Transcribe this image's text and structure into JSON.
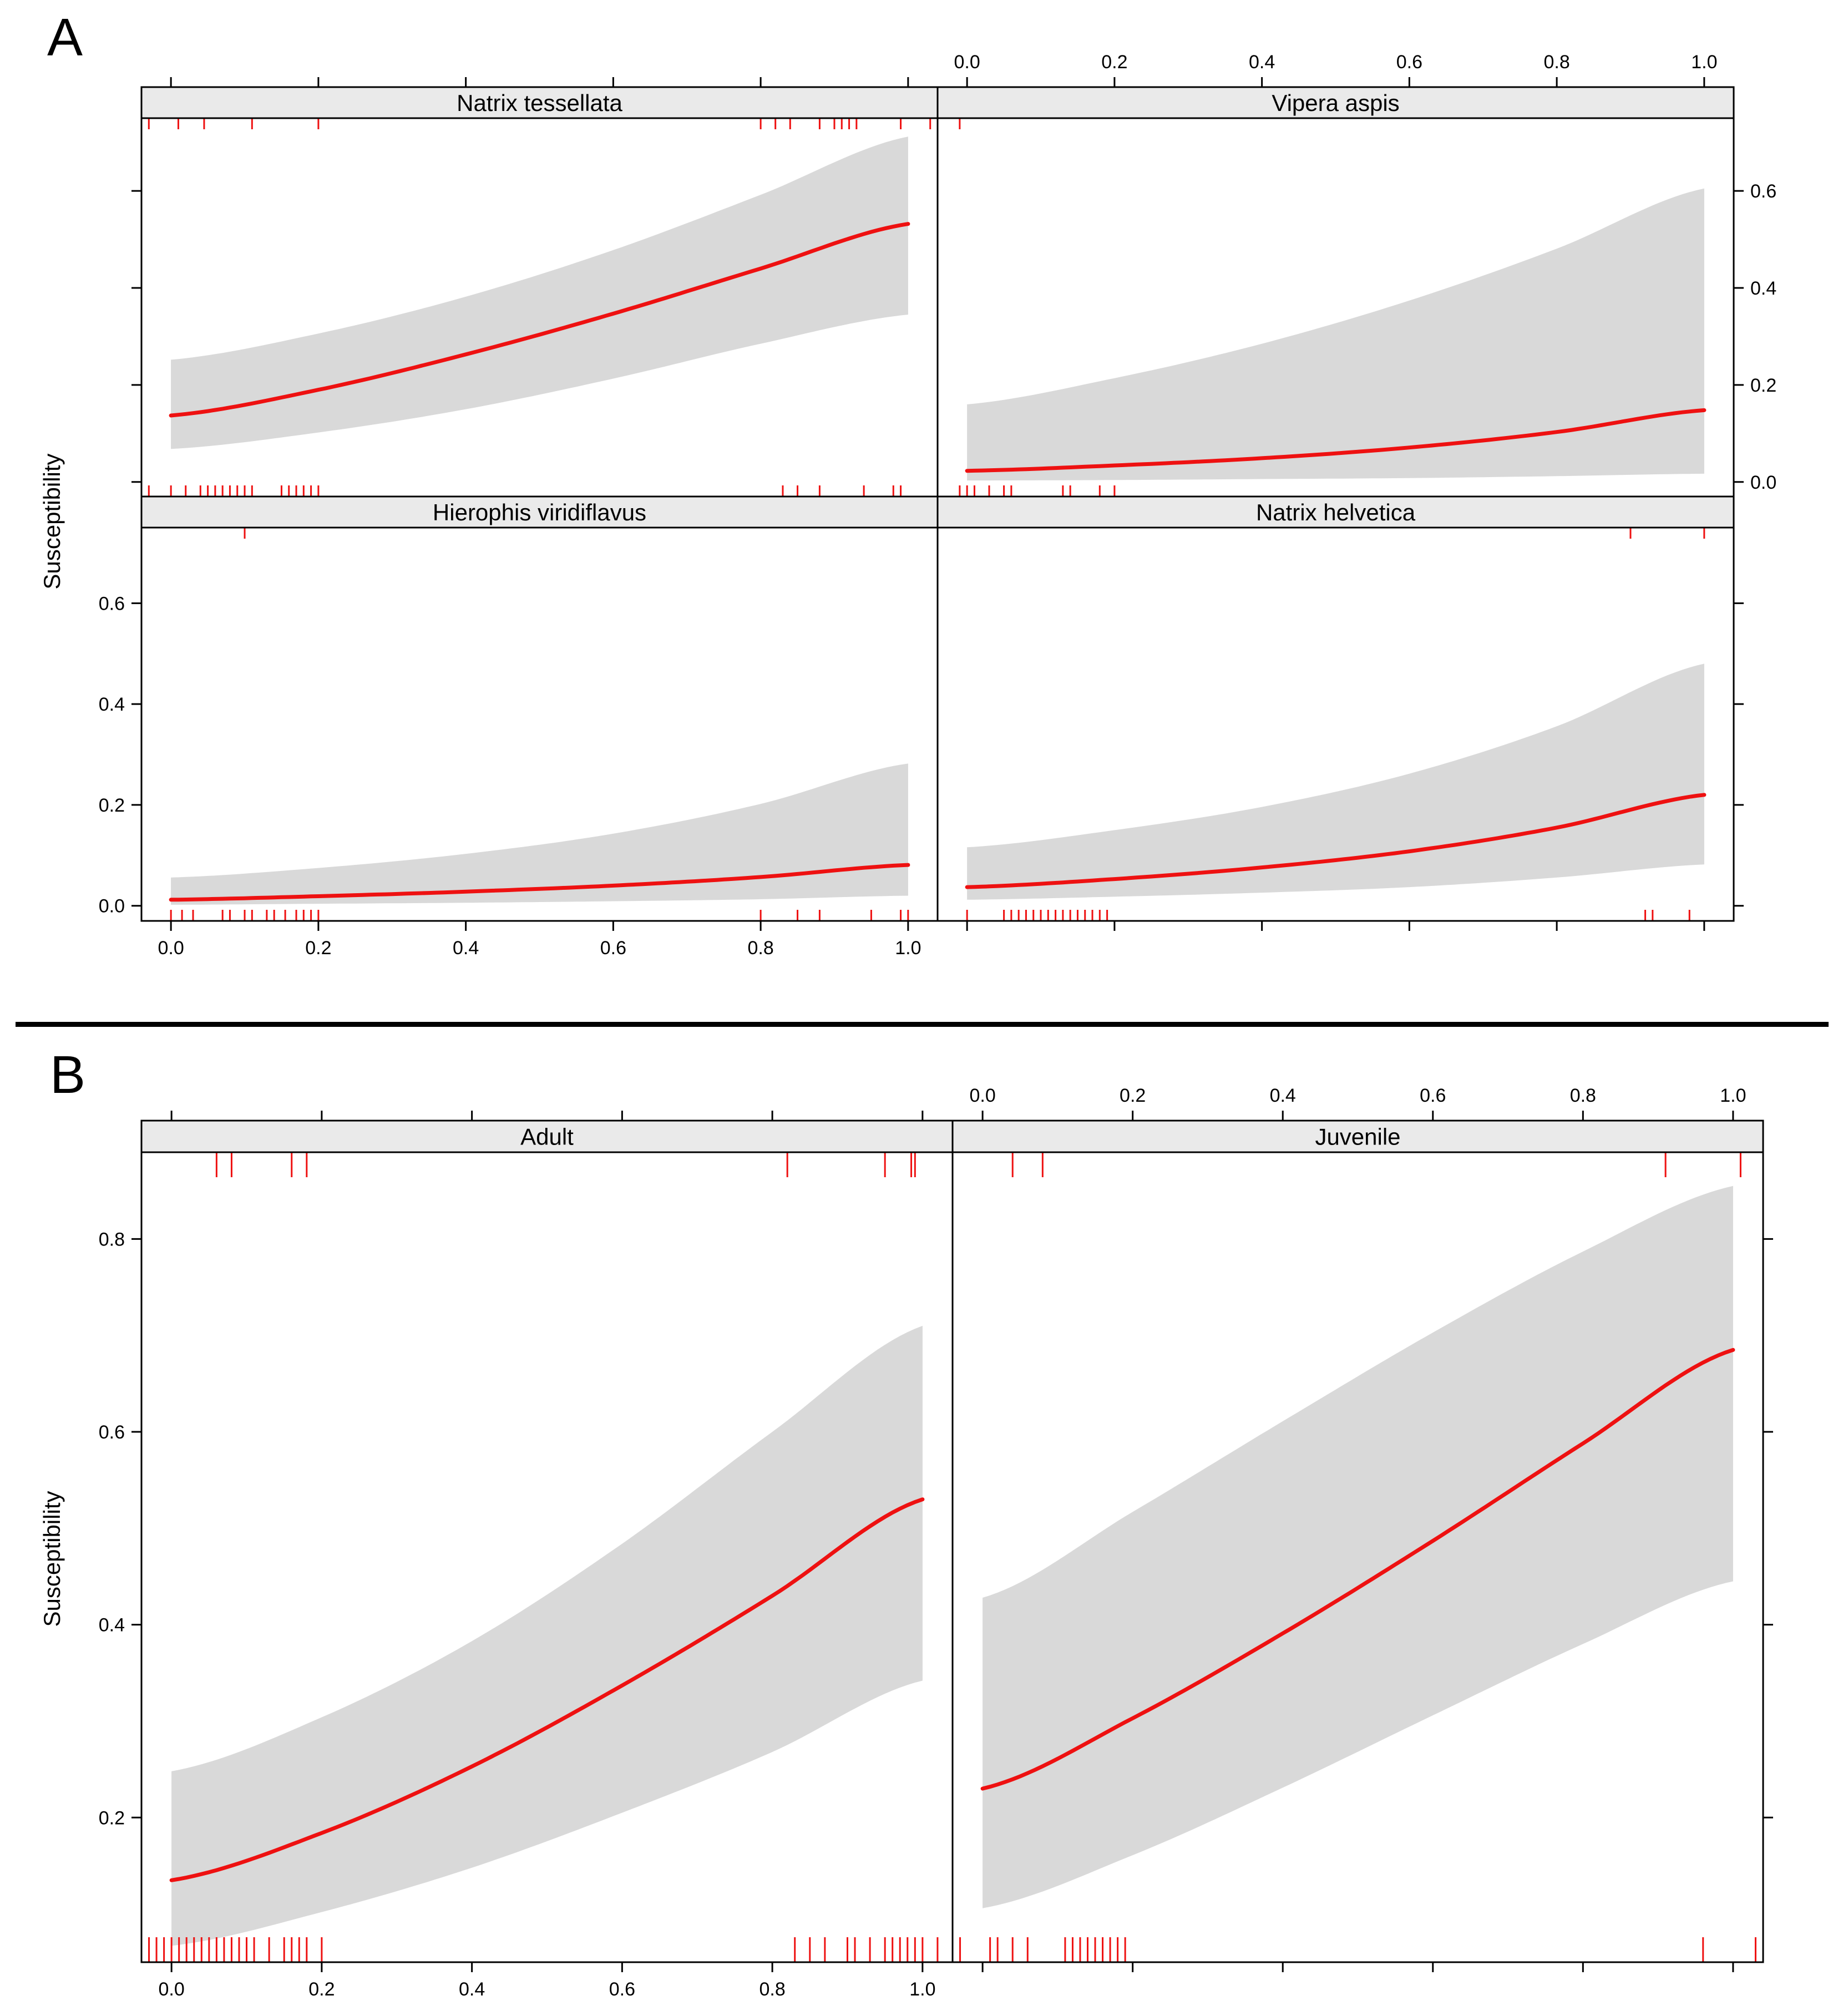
{
  "panel_labels": [
    "A",
    "B"
  ],
  "chart_data": [
    {
      "type": "line",
      "id": "A",
      "title": "",
      "xlabel": "",
      "ylabel": "Susceptibility",
      "layout": "2x2",
      "xlim": [
        -0.04,
        1.04
      ],
      "ylim": [
        -0.03,
        0.75
      ],
      "x_ticks": [
        0.0,
        0.2,
        0.4,
        0.6,
        0.8,
        1.0
      ],
      "x_tick_labels": [
        "0.0",
        "0.2",
        "0.4",
        "0.6",
        "0.8",
        "1.0"
      ],
      "y_ticks": [
        0.0,
        0.2,
        0.4,
        0.6
      ],
      "y_tick_labels": [
        "0.0",
        "0.2",
        "0.4",
        "0.6"
      ],
      "band_color": "#d9d9d9",
      "line_color": "#ee1111",
      "panels": [
        {
          "strip": "Hierophis viridiflavus",
          "x": [
            0.0,
            0.2,
            0.4,
            0.6,
            0.8,
            1.0
          ],
          "fit": [
            0.012,
            0.019,
            0.028,
            0.04,
            0.057,
            0.081
          ],
          "lower": [
            0.002,
            0.004,
            0.006,
            0.009,
            0.013,
            0.02
          ],
          "upper": [
            0.056,
            0.075,
            0.103,
            0.143,
            0.202,
            0.282
          ],
          "rug_top": [
            0.1
          ],
          "rug_bottom": [
            0.0,
            0.015,
            0.03,
            0.07,
            0.08,
            0.1,
            0.11,
            0.13,
            0.14,
            0.155,
            0.17,
            0.18,
            0.19,
            0.2,
            0.8,
            0.85,
            0.88,
            0.95,
            0.99,
            1.0
          ]
        },
        {
          "strip": "Natrix helvetica",
          "x": [
            0.0,
            0.2,
            0.4,
            0.6,
            0.8,
            1.0
          ],
          "fit": [
            0.037,
            0.053,
            0.076,
            0.108,
            0.155,
            0.22
          ],
          "lower": [
            0.012,
            0.018,
            0.026,
            0.037,
            0.056,
            0.082
          ],
          "upper": [
            0.116,
            0.15,
            0.196,
            0.262,
            0.356,
            0.48
          ],
          "rug_top": [
            0.9,
            1.0
          ],
          "rug_bottom": [
            0.0,
            0.05,
            0.06,
            0.07,
            0.08,
            0.09,
            0.1,
            0.11,
            0.12,
            0.13,
            0.14,
            0.15,
            0.16,
            0.17,
            0.18,
            0.19,
            0.92,
            0.93,
            0.98
          ]
        },
        {
          "strip": "Natrix tessellata",
          "x": [
            0.0,
            0.2,
            0.4,
            0.6,
            0.8,
            1.0
          ],
          "fit": [
            0.137,
            0.19,
            0.263,
            0.347,
            0.44,
            0.532
          ],
          "lower": [
            0.068,
            0.102,
            0.15,
            0.213,
            0.285,
            0.345
          ],
          "upper": [
            0.252,
            0.306,
            0.382,
            0.478,
            0.592,
            0.712
          ],
          "rug_top": [
            -0.03,
            0.01,
            0.045,
            0.11,
            0.2,
            0.8,
            0.82,
            0.84,
            0.88,
            0.9,
            0.91,
            0.92,
            0.93,
            0.99,
            1.03
          ],
          "rug_bottom": [
            -0.03,
            0.0,
            0.02,
            0.04,
            0.05,
            0.06,
            0.07,
            0.08,
            0.09,
            0.1,
            0.11,
            0.15,
            0.16,
            0.17,
            0.18,
            0.19,
            0.2,
            0.83,
            0.85,
            0.88,
            0.94,
            0.98,
            0.99
          ]
        },
        {
          "strip": "Vipera aspis",
          "x": [
            0.0,
            0.2,
            0.4,
            0.6,
            0.8,
            1.0
          ],
          "fit": [
            0.023,
            0.034,
            0.049,
            0.071,
            0.103,
            0.148
          ],
          "lower": [
            0.003,
            0.004,
            0.006,
            0.008,
            0.012,
            0.017
          ],
          "upper": [
            0.16,
            0.214,
            0.285,
            0.374,
            0.481,
            0.605
          ],
          "rug_top": [
            -0.01
          ],
          "rug_bottom": [
            -0.01,
            0.0,
            0.01,
            0.03,
            0.05,
            0.06,
            0.13,
            0.14,
            0.18,
            0.2
          ]
        }
      ]
    },
    {
      "type": "line",
      "id": "B",
      "title": "",
      "xlabel": "",
      "ylabel": "Susceptibility",
      "layout": "1x2",
      "xlim": [
        -0.04,
        1.04
      ],
      "ylim": [
        0.05,
        0.89
      ],
      "x_ticks": [
        0.0,
        0.2,
        0.4,
        0.6,
        0.8,
        1.0
      ],
      "x_tick_labels": [
        "0.0",
        "0.2",
        "0.4",
        "0.6",
        "0.8",
        "1.0"
      ],
      "y_ticks": [
        0.2,
        0.4,
        0.6,
        0.8
      ],
      "y_tick_labels": [
        "0.2",
        "0.4",
        "0.6",
        "0.8"
      ],
      "band_color": "#d9d9d9",
      "line_color": "#ee1111",
      "panels": [
        {
          "strip": "Adult",
          "x": [
            0.0,
            0.2,
            0.4,
            0.6,
            0.8,
            1.0
          ],
          "fit": [
            0.135,
            0.184,
            0.253,
            0.337,
            0.43,
            0.53
          ],
          "lower": [
            0.067,
            0.102,
            0.148,
            0.205,
            0.268,
            0.342
          ],
          "upper": [
            0.248,
            0.304,
            0.383,
            0.484,
            0.6,
            0.71
          ],
          "rug_top": [
            0.06,
            0.08,
            0.16,
            0.18,
            0.82,
            0.95,
            0.985,
            0.99,
            1.04
          ],
          "rug_bottom": [
            -0.03,
            -0.02,
            -0.01,
            0.0,
            0.01,
            0.02,
            0.03,
            0.04,
            0.05,
            0.06,
            0.07,
            0.08,
            0.09,
            0.1,
            0.11,
            0.13,
            0.15,
            0.16,
            0.17,
            0.18,
            0.2,
            0.83,
            0.85,
            0.87,
            0.9,
            0.91,
            0.93,
            0.95,
            0.96,
            0.97,
            0.98,
            0.99,
            1.0,
            1.02,
            1.04
          ]
        },
        {
          "strip": "Juvenile",
          "x": [
            0.0,
            0.2,
            0.4,
            0.6,
            0.8,
            1.0
          ],
          "fit": [
            0.23,
            0.303,
            0.391,
            0.487,
            0.588,
            0.685
          ],
          "lower": [
            0.106,
            0.161,
            0.231,
            0.306,
            0.38,
            0.445
          ],
          "upper": [
            0.428,
            0.517,
            0.611,
            0.703,
            0.787,
            0.855
          ],
          "rug_top": [
            0.04,
            0.08,
            0.91,
            1.01
          ],
          "rug_bottom": [
            -0.03,
            0.01,
            0.02,
            0.04,
            0.06,
            0.11,
            0.12,
            0.13,
            0.14,
            0.15,
            0.16,
            0.17,
            0.18,
            0.19,
            0.96,
            1.03
          ]
        }
      ]
    }
  ]
}
